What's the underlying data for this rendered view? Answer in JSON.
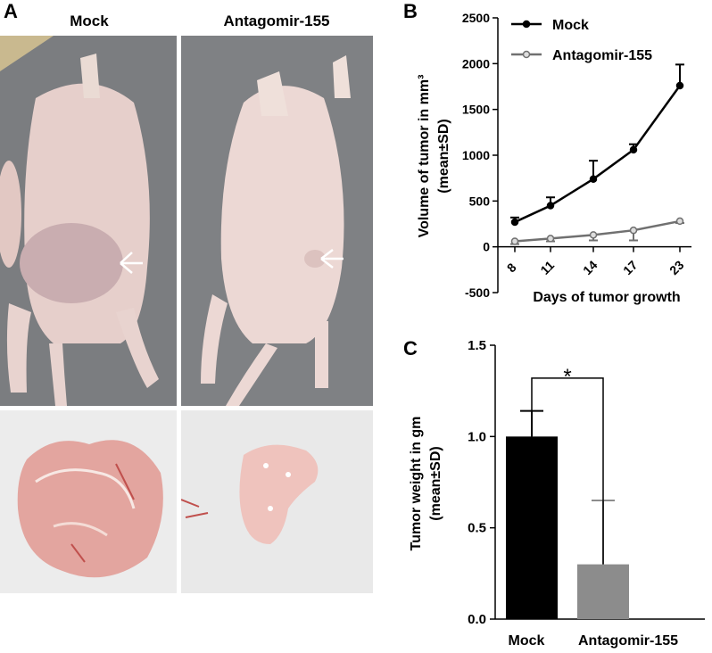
{
  "panel_a": {
    "letter": "A",
    "mock_label": "Mock",
    "antagomir_label": "Antagomir-155"
  },
  "panel_b": {
    "letter": "B"
  },
  "panel_c": {
    "letter": "C"
  },
  "colors": {
    "mock": "#000000",
    "antagomir_line": "#707070",
    "antagomir_bar": "#8c8c8c",
    "photo_bg": "#7d7f82",
    "skin": "#e9d3cf",
    "tumor": "#e6a6a0"
  },
  "chart_data": [
    {
      "type": "line",
      "panel": "B",
      "xlabel": "Days of tumor growth",
      "ylabel": "Volume of tumor in mm³ (mean±SD)",
      "ylabel_line1": "Volume of tumor in mm³",
      "ylabel_line2": "(mean±SD)",
      "ylim": [
        -500,
        2500
      ],
      "yticks": [
        -500,
        0,
        500,
        1000,
        1500,
        2000,
        2500
      ],
      "x": [
        8,
        11,
        14,
        17,
        23
      ],
      "series": [
        {
          "name": "Mock",
          "values": [
            270,
            450,
            740,
            1060,
            1760
          ],
          "error": [
            50,
            90,
            200,
            60,
            230
          ]
        },
        {
          "name": "Antagomir-155",
          "values": [
            60,
            90,
            130,
            180,
            280
          ],
          "error": [
            30,
            30,
            60,
            110,
            20
          ]
        }
      ],
      "legend": "top-left"
    },
    {
      "type": "bar",
      "panel": "C",
      "categories": [
        "Mock",
        "Antagomir-155"
      ],
      "values": [
        1.0,
        0.3
      ],
      "error": [
        0.14,
        0.35
      ],
      "ylabel": "Tumor weight in gm (mean±SD)",
      "ylabel_line1": "Tumor weight in gm",
      "ylabel_line2": "(mean±SD)",
      "ylim": [
        0,
        1.5
      ],
      "yticks": [
        "0.0",
        "0.5",
        "1.0",
        "1.5"
      ],
      "significance": "*"
    }
  ]
}
